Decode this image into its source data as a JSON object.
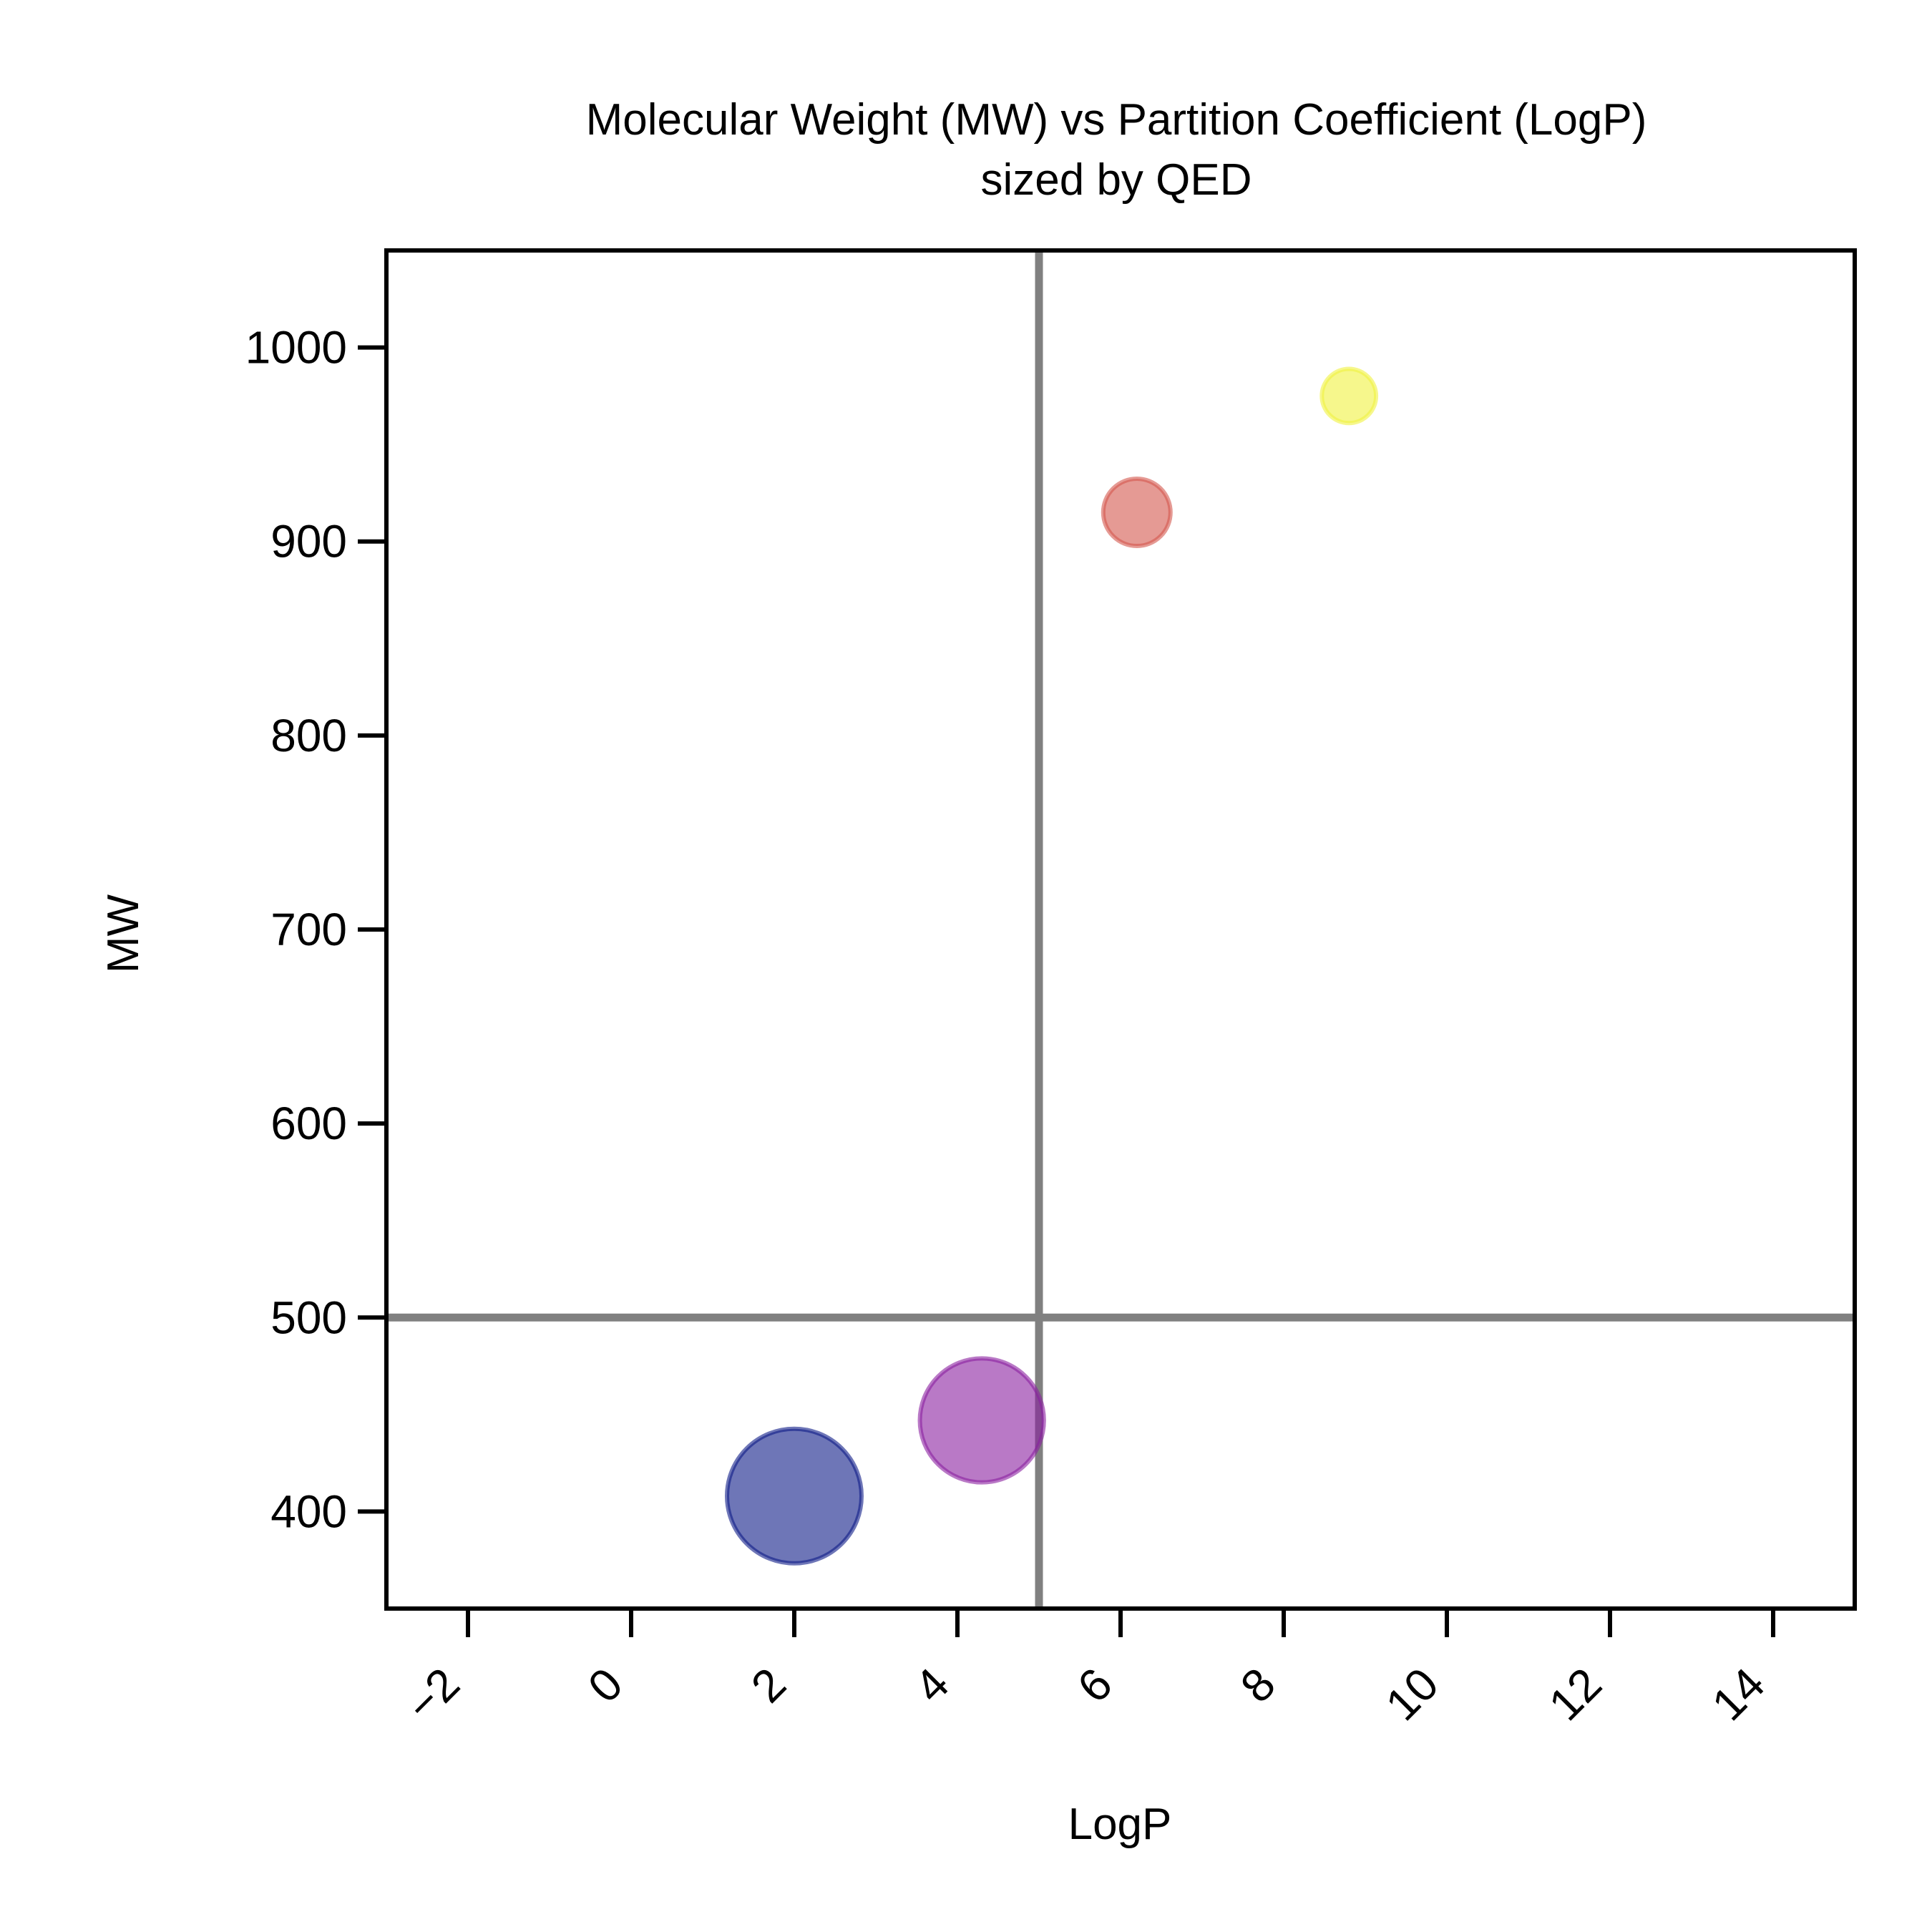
{
  "chart_data": {
    "type": "scatter",
    "title": "Molecular Weight (MW) vs Partition Coefficient (LogP)",
    "subtitle": "sized by QED",
    "xlabel": "LogP",
    "ylabel": "MW",
    "xlim": [
      -3,
      15
    ],
    "ylim": [
      350,
      1050
    ],
    "x_ticks": [
      -2,
      0,
      2,
      4,
      6,
      8,
      10,
      12,
      14
    ],
    "x_tick_labels": [
      "−2",
      "0",
      "2",
      "4",
      "6",
      "8",
      "10",
      "12",
      "14"
    ],
    "y_ticks": [
      400,
      500,
      600,
      700,
      800,
      900,
      1000
    ],
    "y_tick_labels": [
      "400",
      "500",
      "600",
      "700",
      "800",
      "900",
      "1000"
    ],
    "reference_lines": {
      "x": 5,
      "y": 500,
      "color": "#808080"
    },
    "grid": false,
    "legend": "none",
    "points": [
      {
        "x": 2.0,
        "y": 408,
        "qed": 0.8,
        "color": "#0d1b87"
      },
      {
        "x": 4.3,
        "y": 447,
        "qed": 0.68,
        "color": "#8b1fa0"
      },
      {
        "x": 6.2,
        "y": 915,
        "qed": 0.2,
        "color": "#d4574c"
      },
      {
        "x": 8.8,
        "y": 975,
        "qed": 0.13,
        "color": "#f0f240"
      }
    ]
  }
}
